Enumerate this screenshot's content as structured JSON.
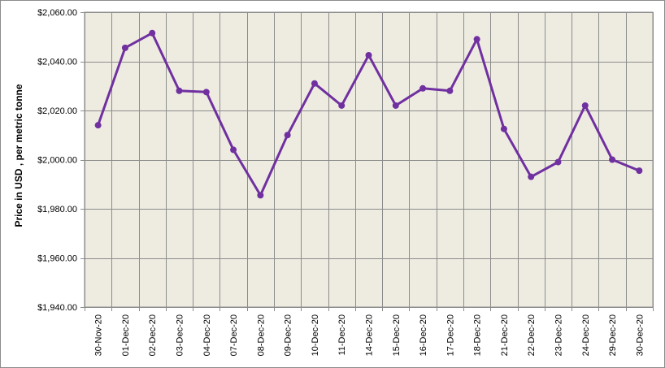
{
  "chart_data": {
    "type": "line",
    "title": "",
    "xlabel": "",
    "ylabel": "Price in USD , per metric tonne",
    "ylim": [
      1940,
      2060
    ],
    "yticks": [
      "$2,060.00",
      "$2,040.00",
      "$2,020.00",
      "$2,000.00",
      "$1,980.00",
      "$1,960.00",
      "$1,940.00"
    ],
    "ytick_values": [
      2060,
      2040,
      2020,
      2000,
      1980,
      1960,
      1940
    ],
    "categories": [
      "30-Nov-20",
      "01-Dec-20",
      "02-Dec-20",
      "03-Dec-20",
      "04-Dec-20",
      "07-Dec-20",
      "08-Dec-20",
      "09-Dec-20",
      "10-Dec-20",
      "11-Dec-20",
      "14-Dec-20",
      "15-Dec-20",
      "16-Dec-20",
      "17-Dec-20",
      "18-Dec-20",
      "21-Dec-20",
      "22-Dec-20",
      "23-Dec-20",
      "24-Dec-20",
      "29-Dec-20",
      "30-Dec-20"
    ],
    "series": [
      {
        "values": [
          2014,
          2045.5,
          2051.5,
          2028,
          2027.5,
          2004,
          1985.5,
          2010,
          2031,
          2022,
          2042.5,
          2022,
          2029,
          2028,
          2049,
          2012.5,
          1993,
          1999,
          2022,
          2000,
          1995.5
        ]
      }
    ],
    "grid": true,
    "legend": "none",
    "colors": {
      "line": "#7030a0",
      "plot_background": "#eeece1",
      "grid": "#8c8c8c"
    }
  }
}
